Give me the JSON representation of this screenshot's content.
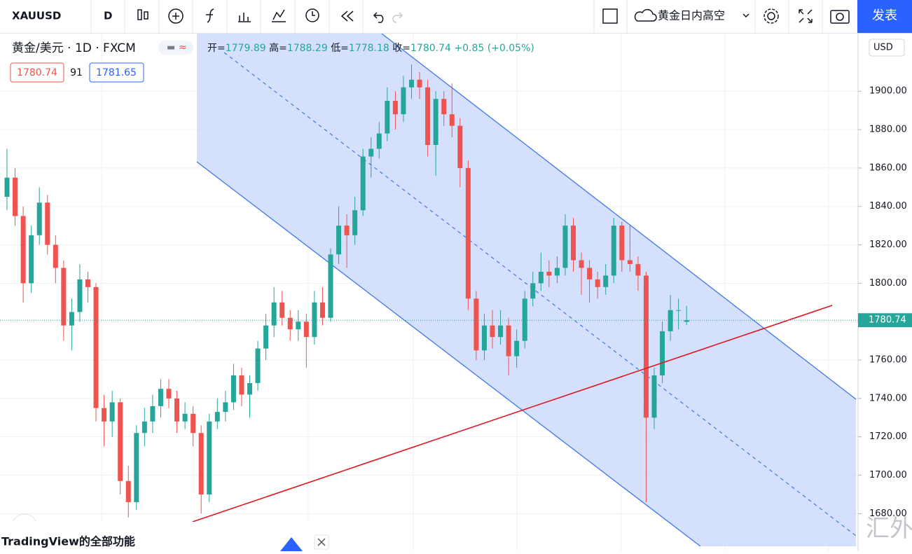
{
  "toolbar": {
    "symbol": "XAUUSD",
    "interval": "D",
    "layout_name": "黄金日内高空",
    "publish": "发表"
  },
  "legend": {
    "title": "黄金/美元 · 1D · FXCM",
    "open_label": "开=",
    "high_label": "高=",
    "low_label": "低=",
    "close_label": "收=",
    "change": "+0.85 (+0.05%)",
    "bid": "1780.74",
    "spread": "91",
    "ask": "1781.65"
  },
  "currency": "USD",
  "banner": "TradingView的全部功能",
  "watermark": "汇外网",
  "chart_data": {
    "type": "candlestick",
    "up_color": "#26a69a",
    "down_color": "#ef5350",
    "ylim": [
      1663,
      1930
    ],
    "yticks": [
      {
        "value": 1680,
        "label": "1680.00"
      },
      {
        "value": 1700,
        "label": "1700.00"
      },
      {
        "value": 1720,
        "label": "1720.00"
      },
      {
        "value": 1740,
        "label": "1740.00"
      },
      {
        "value": 1760,
        "label": "1760.00"
      },
      {
        "value": 1780,
        "label": "1780.00"
      },
      {
        "value": 1800,
        "label": "1800.00"
      },
      {
        "value": 1820,
        "label": "1820.00"
      },
      {
        "value": 1840,
        "label": "1840.00"
      },
      {
        "value": 1860,
        "label": "1860.00"
      },
      {
        "value": 1880,
        "label": "1880.00"
      },
      {
        "value": 1900,
        "label": "1900.00"
      }
    ],
    "grid": true,
    "ohlc": [
      [
        1845,
        1870,
        1838,
        1855
      ],
      [
        1855,
        1860,
        1830,
        1835
      ],
      [
        1835,
        1840,
        1790,
        1800
      ],
      [
        1800,
        1830,
        1795,
        1825
      ],
      [
        1825,
        1850,
        1820,
        1842
      ],
      [
        1842,
        1846,
        1815,
        1820
      ],
      [
        1820,
        1825,
        1800,
        1808
      ],
      [
        1808,
        1812,
        1770,
        1778
      ],
      [
        1778,
        1792,
        1765,
        1785
      ],
      [
        1785,
        1810,
        1780,
        1802
      ],
      [
        1802,
        1806,
        1790,
        1798
      ],
      [
        1798,
        1800,
        1728,
        1735
      ],
      [
        1735,
        1742,
        1715,
        1728
      ],
      [
        1728,
        1744,
        1720,
        1738
      ],
      [
        1738,
        1740,
        1690,
        1697
      ],
      [
        1697,
        1705,
        1678,
        1686
      ],
      [
        1686,
        1726,
        1682,
        1722
      ],
      [
        1722,
        1735,
        1715,
        1728
      ],
      [
        1728,
        1742,
        1722,
        1736
      ],
      [
        1736,
        1750,
        1730,
        1745
      ],
      [
        1745,
        1750,
        1735,
        1740
      ],
      [
        1740,
        1744,
        1722,
        1728
      ],
      [
        1728,
        1738,
        1724,
        1732
      ],
      [
        1732,
        1736,
        1715,
        1722
      ],
      [
        1722,
        1726,
        1680,
        1690
      ],
      [
        1690,
        1732,
        1686,
        1728
      ],
      [
        1728,
        1740,
        1724,
        1733
      ],
      [
        1733,
        1744,
        1728,
        1738
      ],
      [
        1738,
        1758,
        1734,
        1752
      ],
      [
        1752,
        1756,
        1736,
        1742
      ],
      [
        1742,
        1752,
        1730,
        1748
      ],
      [
        1748,
        1770,
        1744,
        1766
      ],
      [
        1766,
        1784,
        1760,
        1778
      ],
      [
        1778,
        1798,
        1772,
        1790
      ],
      [
        1790,
        1796,
        1778,
        1782
      ],
      [
        1782,
        1786,
        1770,
        1776
      ],
      [
        1776,
        1786,
        1770,
        1780
      ],
      [
        1780,
        1784,
        1756,
        1772
      ],
      [
        1772,
        1796,
        1768,
        1790
      ],
      [
        1790,
        1798,
        1778,
        1782
      ],
      [
        1782,
        1818,
        1780,
        1815
      ],
      [
        1815,
        1840,
        1810,
        1830
      ],
      [
        1830,
        1836,
        1808,
        1825
      ],
      [
        1825,
        1845,
        1820,
        1838
      ],
      [
        1838,
        1870,
        1835,
        1866
      ],
      [
        1866,
        1876,
        1855,
        1870
      ],
      [
        1870,
        1884,
        1865,
        1878
      ],
      [
        1878,
        1902,
        1874,
        1895
      ],
      [
        1895,
        1900,
        1880,
        1888
      ],
      [
        1888,
        1908,
        1884,
        1902
      ],
      [
        1902,
        1914,
        1896,
        1906
      ],
      [
        1906,
        1910,
        1896,
        1902
      ],
      [
        1902,
        1906,
        1866,
        1872
      ],
      [
        1872,
        1900,
        1856,
        1896
      ],
      [
        1896,
        1900,
        1882,
        1888
      ],
      [
        1888,
        1904,
        1876,
        1882
      ],
      [
        1882,
        1886,
        1850,
        1860
      ],
      [
        1860,
        1864,
        1786,
        1792
      ],
      [
        1792,
        1796,
        1760,
        1765
      ],
      [
        1765,
        1784,
        1760,
        1778
      ],
      [
        1778,
        1786,
        1766,
        1772
      ],
      [
        1772,
        1786,
        1768,
        1778
      ],
      [
        1778,
        1782,
        1752,
        1762
      ],
      [
        1762,
        1776,
        1756,
        1770
      ],
      [
        1770,
        1796,
        1766,
        1792
      ],
      [
        1792,
        1806,
        1788,
        1800
      ],
      [
        1800,
        1816,
        1796,
        1806
      ],
      [
        1806,
        1812,
        1798,
        1804
      ],
      [
        1804,
        1814,
        1800,
        1808
      ],
      [
        1808,
        1836,
        1804,
        1830
      ],
      [
        1830,
        1834,
        1806,
        1812
      ],
      [
        1812,
        1816,
        1794,
        1808
      ],
      [
        1808,
        1812,
        1790,
        1802
      ],
      [
        1802,
        1806,
        1792,
        1798
      ],
      [
        1798,
        1810,
        1794,
        1804
      ],
      [
        1804,
        1834,
        1800,
        1830
      ],
      [
        1830,
        1832,
        1806,
        1812
      ],
      [
        1812,
        1830,
        1806,
        1810
      ],
      [
        1810,
        1814,
        1796,
        1804
      ],
      [
        1804,
        1806,
        1686,
        1730
      ],
      [
        1730,
        1756,
        1724,
        1752
      ],
      [
        1752,
        1780,
        1748,
        1775
      ],
      [
        1775,
        1794,
        1770,
        1786
      ],
      [
        1786,
        1792,
        1776,
        1786
      ],
      [
        1779.89,
        1788.29,
        1778.18,
        1780.74
      ]
    ]
  }
}
